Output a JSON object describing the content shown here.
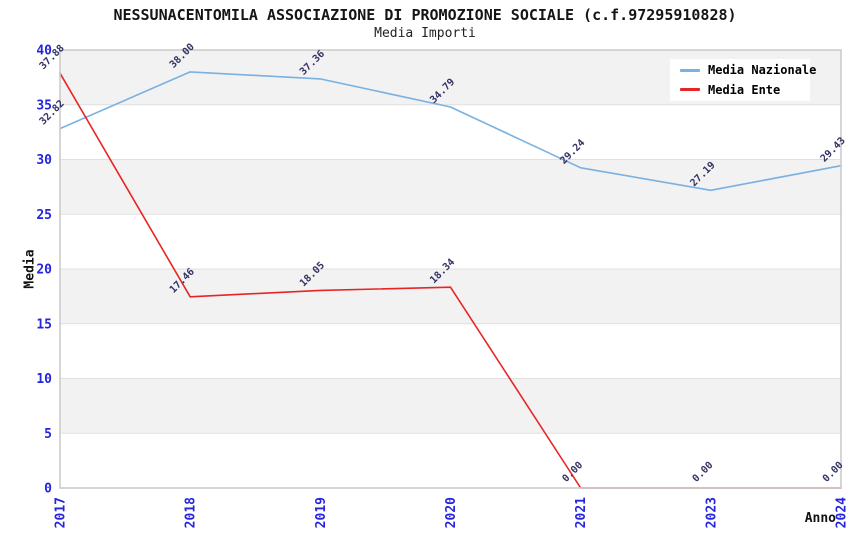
{
  "title": "NESSUNACENTOMILA ASSOCIAZIONE DI PROMOZIONE SOCIALE (c.f.97295910828)",
  "subtitle": "Media Importi",
  "chart_data": {
    "type": "line",
    "categories": [
      "2017",
      "2018",
      "2019",
      "2020",
      "2021",
      "2023",
      "2024"
    ],
    "series": [
      {
        "name": "Media Nazionale",
        "color": "#79b1e1",
        "values": [
          32.82,
          38.0,
          37.36,
          34.79,
          29.24,
          27.19,
          29.43
        ]
      },
      {
        "name": "Media Ente",
        "color": "#e82525",
        "values": [
          37.88,
          17.46,
          18.05,
          18.34,
          0.0,
          0.0,
          0.0
        ]
      }
    ],
    "xlabel": "Anno",
    "ylabel": "Media",
    "ylim": [
      0,
      40
    ],
    "yticks": [
      0,
      5,
      10,
      15,
      20,
      25,
      30,
      35,
      40
    ],
    "grid": true,
    "legend_position": "top-right",
    "data_label_format": "2-decimals",
    "colors": {
      "band_fill": "#f2f2f2",
      "gridline": "#e0e0e0",
      "plot_border": "#cccccc",
      "tick_label": "#2525dd",
      "data_label": "#333366",
      "title_text": "#151515"
    }
  }
}
